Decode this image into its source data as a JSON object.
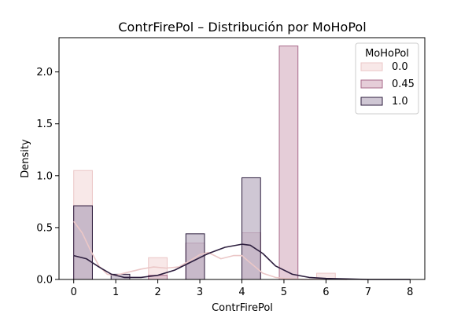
{
  "chart_data": {
    "type": "bar",
    "title": "ContrFirePol – Distribución por MoHoPol",
    "xlabel": "ContrFirePol",
    "ylabel": "Density",
    "xlim": [
      -0.35,
      8.35
    ],
    "ylim": [
      0,
      2.33
    ],
    "xticks": [
      "0",
      "1",
      "2",
      "3",
      "4",
      "5",
      "6",
      "7",
      "8"
    ],
    "yticks": [
      "0.0",
      "0.5",
      "1.0",
      "1.5",
      "2.0"
    ],
    "grid": false,
    "legend": {
      "title": "MoHoPol",
      "placement": "top-right"
    },
    "bin_edges": [
      0,
      0.444,
      0.889,
      1.333,
      1.778,
      2.222,
      2.667,
      3.111,
      3.556,
      4.0,
      4.444,
      4.889,
      5.333,
      5.778,
      6.222,
      6.667,
      7.111,
      7.556,
      8.0
    ],
    "series": [
      {
        "name": "0.0",
        "fill": "#f6e0e0",
        "stroke": "#ebc7c7",
        "values": [
          1.05,
          0.0,
          0.0,
          0.0,
          0.21,
          0.0,
          0.35,
          0.0,
          0.0,
          0.45,
          0.0,
          0.0,
          0.0,
          0.06,
          0.0,
          0.0,
          0.0,
          0.0
        ],
        "kde": [
          [
            0,
            0.56
          ],
          [
            0.2,
            0.45
          ],
          [
            0.4,
            0.28
          ],
          [
            0.6,
            0.13
          ],
          [
            0.8,
            0.05
          ],
          [
            1.0,
            0.04
          ],
          [
            1.3,
            0.07
          ],
          [
            1.6,
            0.1
          ],
          [
            1.9,
            0.12
          ],
          [
            2.2,
            0.11
          ],
          [
            2.5,
            0.12
          ],
          [
            2.8,
            0.19
          ],
          [
            3.0,
            0.24
          ],
          [
            3.2,
            0.26
          ],
          [
            3.5,
            0.2
          ],
          [
            3.8,
            0.23
          ],
          [
            4.0,
            0.23
          ],
          [
            4.2,
            0.16
          ],
          [
            4.5,
            0.06
          ],
          [
            4.8,
            0.02
          ],
          [
            5.0,
            0.01
          ],
          [
            5.5,
            0.0
          ],
          [
            6.0,
            0.005
          ],
          [
            6.5,
            0.0
          ]
        ]
      },
      {
        "name": "0.45",
        "fill": "#dcbccb",
        "stroke": "#a86a8a",
        "values": [
          0.71,
          0.0,
          0.0,
          0.0,
          0.04,
          0.0,
          0.35,
          0.0,
          0.0,
          0.45,
          0.0,
          2.25,
          0.0,
          0.0,
          0.0,
          0.0,
          0.0,
          0.0
        ],
        "kde": []
      },
      {
        "name": "1.0",
        "fill": "#bfb4c6",
        "stroke": "#2d1e3e",
        "values": [
          0.71,
          0.0,
          0.05,
          0.0,
          0.0,
          0.0,
          0.44,
          0.0,
          0.0,
          0.98,
          0.0,
          0.0,
          0.0,
          0.0,
          0.0,
          0.0,
          0.0,
          0.0
        ],
        "kde": [
          [
            0,
            0.23
          ],
          [
            0.3,
            0.2
          ],
          [
            0.6,
            0.12
          ],
          [
            0.9,
            0.05
          ],
          [
            1.2,
            0.02
          ],
          [
            1.6,
            0.02
          ],
          [
            2.0,
            0.04
          ],
          [
            2.4,
            0.09
          ],
          [
            2.8,
            0.17
          ],
          [
            3.2,
            0.25
          ],
          [
            3.6,
            0.31
          ],
          [
            4.0,
            0.34
          ],
          [
            4.2,
            0.33
          ],
          [
            4.5,
            0.25
          ],
          [
            4.8,
            0.13
          ],
          [
            5.2,
            0.05
          ],
          [
            5.6,
            0.02
          ],
          [
            6.0,
            0.01
          ],
          [
            6.5,
            0.005
          ],
          [
            7.0,
            0.0
          ],
          [
            8.0,
            0.0
          ]
        ]
      }
    ]
  }
}
